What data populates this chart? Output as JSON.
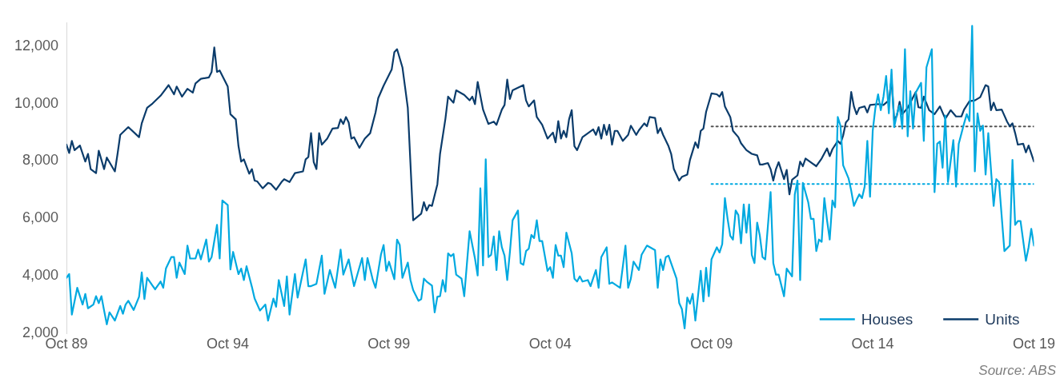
{
  "chart_data": {
    "type": "line",
    "xlim": [
      "1989-10",
      "2019-10"
    ],
    "ylim": [
      2000,
      12800
    ],
    "xticks": [
      {
        "value": "1989-10",
        "label": "Oct 89"
      },
      {
        "value": "1994-10",
        "label": "Oct 94"
      },
      {
        "value": "1999-10",
        "label": "Oct 99"
      },
      {
        "value": "2004-10",
        "label": "Oct 04"
      },
      {
        "value": "2009-10",
        "label": "Oct 09"
      },
      {
        "value": "2014-10",
        "label": "Oct 14"
      },
      {
        "value": "2019-10",
        "label": "Oct 19"
      }
    ],
    "yticks": [
      {
        "value": 2000,
        "label": "2,000"
      },
      {
        "value": 4000,
        "label": "4,000"
      },
      {
        "value": 6000,
        "label": "6,000"
      },
      {
        "value": 8000,
        "label": "8,000"
      },
      {
        "value": 10000,
        "label": "10,000"
      },
      {
        "value": 12000,
        "label": "12,000"
      }
    ],
    "grid": false,
    "legend": "bottom right",
    "marker": "none",
    "line_style": "solid",
    "annotations": [
      "Source: ABS"
    ],
    "series": [
      {
        "name": "Houses",
        "color": "#00a9e0",
        "x": [
          "1989-10",
          "1989-11",
          "1989-12",
          "1990-02",
          "1990-04",
          "1990-05",
          "1990-06",
          "1990-08",
          "1990-09",
          "1990-10",
          "1990-11",
          "1990-12",
          "1991-01",
          "1991-02",
          "1991-04",
          "1991-06",
          "1991-07",
          "1991-08",
          "1991-09",
          "1991-11",
          "1992-01",
          "1992-02",
          "1992-03",
          "1992-04",
          "1992-06",
          "1992-07",
          "1992-09",
          "1992-10",
          "1992-11",
          "1993-01",
          "1993-02",
          "1993-03",
          "1993-04",
          "1993-06",
          "1993-07",
          "1993-08",
          "1993-10",
          "1993-11",
          "1993-12",
          "1994-02",
          "1994-03",
          "1994-04",
          "1994-06",
          "1994-07",
          "1994-08",
          "1994-10",
          "1994-11",
          "1994-12",
          "1995-02",
          "1995-03",
          "1995-04",
          "1995-05",
          "1995-07",
          "1995-08",
          "1995-10",
          "1995-12",
          "1996-01",
          "1996-03",
          "1996-04",
          "1996-05",
          "1996-07",
          "1996-08",
          "1996-09",
          "1996-11",
          "1996-12",
          "1997-03",
          "1997-04",
          "1997-05",
          "1997-07",
          "1997-09",
          "1997-10",
          "1997-12",
          "1998-02",
          "1998-04",
          "1998-05",
          "1998-07",
          "1998-09",
          "1998-12",
          "1999-01",
          "1999-02",
          "1999-04",
          "1999-05",
          "1999-07",
          "1999-08",
          "1999-09",
          "1999-10",
          "1999-12",
          "2000-01",
          "2000-02",
          "2000-03",
          "2000-05",
          "2000-06",
          "2000-07",
          "2000-09",
          "2000-10",
          "2000-11",
          "2000-12",
          "2001-02",
          "2001-03",
          "2001-04",
          "2001-05",
          "2001-06",
          "2001-07",
          "2001-08",
          "2001-09",
          "2001-10",
          "2001-11",
          "2002-01",
          "2002-02",
          "2002-04",
          "2002-06",
          "2002-07",
          "2002-08",
          "2002-09",
          "2002-10",
          "2002-11",
          "2002-12",
          "2003-01",
          "2003-02",
          "2003-03",
          "2003-04",
          "2003-05",
          "2003-06",
          "2003-07",
          "2003-08",
          "2003-10",
          "2003-11",
          "2003-12",
          "2004-01",
          "2004-02",
          "2004-03",
          "2004-04",
          "2004-05",
          "2004-06",
          "2004-07",
          "2004-09",
          "2004-10",
          "2004-11",
          "2004-12",
          "2005-01",
          "2005-02",
          "2005-03",
          "2005-04",
          "2005-06",
          "2005-07",
          "2005-08",
          "2005-09",
          "2005-10",
          "2005-12",
          "2006-01",
          "2006-03",
          "2006-04",
          "2006-05",
          "2006-07",
          "2006-08",
          "2006-09",
          "2006-12",
          "2007-02",
          "2007-03",
          "2007-04",
          "2007-05",
          "2007-07",
          "2007-08",
          "2007-10",
          "2008-01",
          "2008-02",
          "2008-03",
          "2008-04",
          "2008-05",
          "2008-06",
          "2008-09",
          "2008-10",
          "2008-11",
          "2008-12",
          "2009-01",
          "2009-02",
          "2009-03",
          "2009-04",
          "2009-06",
          "2009-07",
          "2009-08",
          "2009-09",
          "2009-10",
          "2009-12",
          "2010-01",
          "2010-02",
          "2010-03",
          "2010-04",
          "2010-05",
          "2010-06",
          "2010-07",
          "2010-08",
          "2010-09",
          "2010-10",
          "2010-11",
          "2010-12",
          "2011-01",
          "2011-02",
          "2011-03",
          "2011-04",
          "2011-05",
          "2011-06",
          "2011-08",
          "2011-09",
          "2011-10",
          "2011-11",
          "2012-01",
          "2012-02",
          "2012-04",
          "2012-05",
          "2012-06",
          "2012-07",
          "2012-08",
          "2012-10",
          "2012-11",
          "2012-12",
          "2013-01",
          "2013-02",
          "2013-03",
          "2013-04",
          "2013-05",
          "2013-06",
          "2013-07",
          "2013-08",
          "2013-09",
          "2013-10",
          "2013-11",
          "2014-01",
          "2014-02",
          "2014-03",
          "2014-04",
          "2014-05",
          "2014-06",
          "2014-07",
          "2014-08",
          "2014-09",
          "2014-10",
          "2014-11",
          "2014-12",
          "2015-01",
          "2015-02",
          "2015-03",
          "2015-04",
          "2015-05",
          "2015-06",
          "2015-07",
          "2015-08",
          "2015-09",
          "2015-10",
          "2015-11",
          "2015-12",
          "2016-01",
          "2016-02",
          "2016-04",
          "2016-05",
          "2016-06",
          "2016-08",
          "2016-09",
          "2016-10",
          "2016-11",
          "2016-12",
          "2017-01",
          "2017-02",
          "2017-04",
          "2017-05",
          "2017-06",
          "2017-08",
          "2017-09",
          "2017-10",
          "2017-11",
          "2017-12",
          "2018-01",
          "2018-02",
          "2018-03",
          "2018-04",
          "2018-05",
          "2018-07",
          "2018-08",
          "2018-09",
          "2018-11",
          "2019-01",
          "2019-02",
          "2019-03",
          "2019-04",
          "2019-05",
          "2019-07",
          "2019-08",
          "2019-09",
          "2019-10"
        ],
        "values": [
          3940,
          4070,
          2660,
          3590,
          3010,
          3380,
          2880,
          3010,
          3300,
          3060,
          3300,
          2800,
          2320,
          2740,
          2450,
          2960,
          2690,
          3010,
          3140,
          2820,
          3280,
          4130,
          3200,
          3940,
          3670,
          3540,
          3810,
          3590,
          4260,
          4660,
          4660,
          3940,
          4470,
          4070,
          5060,
          4610,
          4610,
          4920,
          4580,
          5270,
          4500,
          4660,
          5780,
          4610,
          6630,
          6470,
          4230,
          4840,
          4070,
          4260,
          3860,
          4340,
          3620,
          3220,
          2800,
          3010,
          2450,
          3220,
          2930,
          3860,
          2960,
          3990,
          2660,
          4070,
          3250,
          4580,
          3650,
          3650,
          3730,
          4710,
          3380,
          4210,
          3590,
          4920,
          4050,
          4580,
          3650,
          4630,
          3860,
          4630,
          3860,
          3590,
          4740,
          5080,
          4180,
          4500,
          3890,
          5270,
          5080,
          3940,
          4470,
          3860,
          3510,
          3140,
          3200,
          3910,
          3810,
          3670,
          2740,
          3280,
          3300,
          3860,
          3460,
          4790,
          4690,
          4770,
          4050,
          3910,
          3300,
          5560,
          4610,
          4020,
          7050,
          4370,
          8060,
          4660,
          4740,
          5380,
          4210,
          5560,
          5000,
          4710,
          3860,
          4840,
          5940,
          6280,
          4450,
          4390,
          4870,
          4950,
          5430,
          5320,
          5940,
          5220,
          5220,
          4180,
          4310,
          3940,
          5080,
          4710,
          4710,
          4310,
          5510,
          4790,
          3910,
          3810,
          3990,
          3810,
          3860,
          3650,
          4210,
          3590,
          4660,
          5000,
          3730,
          3780,
          3590,
          5060,
          3590,
          3910,
          4500,
          4210,
          4740,
          5060,
          4900,
          3590,
          4580,
          4210,
          4660,
          4710,
          3910,
          3060,
          2850,
          2180,
          3250,
          3040,
          3380,
          2450,
          4180,
          3120,
          4290,
          3300,
          4580,
          5000,
          4820,
          5110,
          6710,
          5990,
          5400,
          5270,
          6280,
          6120,
          5140,
          6490,
          5510,
          6490,
          4740,
          4450,
          5860,
          5400,
          4660,
          4580,
          6920,
          4450,
          4050,
          4050,
          3300,
          4260,
          3990,
          6840,
          7320,
          3860,
          7240,
          6570,
          5990,
          5990,
          4870,
          5270,
          5190,
          6710,
          5940,
          5270,
          6630,
          6390,
          9530,
          9230,
          7850,
          7400,
          6970,
          6440,
          6650,
          6840,
          6710,
          7110,
          8700,
          6760,
          9050,
          9850,
          10320,
          9770,
          10240,
          10960,
          9660,
          11180,
          9180,
          9630,
          9930,
          9130,
          11890,
          8860,
          10430,
          9130,
          10380,
          10720,
          8700,
          11260,
          11890,
          6920,
          8600,
          8680,
          7770,
          9580,
          7270,
          8730,
          7110,
          8600,
          9310,
          9630,
          9390,
          12700,
          7640,
          9660,
          9050,
          9230,
          7530,
          8970,
          6440,
          7370,
          7270,
          4870,
          5060,
          8040,
          5780,
          5910,
          5910,
          4530,
          5000,
          5640,
          5060
        ]
      },
      {
        "name": "Units",
        "color": "#0b3c6b",
        "x": [
          "1989-10",
          "1989-11",
          "1989-12",
          "1990-01",
          "1990-03",
          "1990-05",
          "1990-06",
          "1990-07",
          "1990-09",
          "1990-10",
          "1990-12",
          "1991-01",
          "1991-04",
          "1991-05",
          "1991-06",
          "1991-09",
          "1992-01",
          "1992-02",
          "1992-04",
          "1992-06",
          "1992-09",
          "1992-12",
          "1993-02",
          "1993-03",
          "1993-05",
          "1993-07",
          "1993-09",
          "1993-10",
          "1993-12",
          "1994-03",
          "1994-04",
          "1994-05",
          "1994-06",
          "1994-07",
          "1994-10",
          "1994-11",
          "1995-01",
          "1995-02",
          "1995-03",
          "1995-04",
          "1995-06",
          "1995-07",
          "1995-08",
          "1995-09",
          "1995-11",
          "1996-01",
          "1996-02",
          "1996-04",
          "1996-06",
          "1996-07",
          "1996-09",
          "1996-11",
          "1997-02",
          "1997-03",
          "1997-04",
          "1997-05",
          "1997-06",
          "1997-07",
          "1997-08",
          "1997-09",
          "1997-11",
          "1998-01",
          "1998-03",
          "1998-04",
          "1998-05",
          "1998-06",
          "1998-07",
          "1998-08",
          "1998-09",
          "1998-11",
          "1999-01",
          "1999-03",
          "1999-05",
          "1999-06",
          "1999-08",
          "1999-11",
          "1999-12",
          "2000-01",
          "2000-03",
          "2000-04",
          "2000-05",
          "2000-07",
          "2000-10",
          "2000-11",
          "2000-12",
          "2001-01",
          "2001-02",
          "2001-04",
          "2001-05",
          "2001-07",
          "2001-08",
          "2001-10",
          "2001-11",
          "2002-02",
          "2002-04",
          "2002-05",
          "2002-06",
          "2002-07",
          "2002-09",
          "2002-11",
          "2003-01",
          "2003-02",
          "2003-04",
          "2003-05",
          "2003-06",
          "2003-07",
          "2003-08",
          "2003-12",
          "2004-01",
          "2004-02",
          "2004-04",
          "2004-05",
          "2004-07",
          "2004-09",
          "2004-11",
          "2004-12",
          "2005-01",
          "2005-02",
          "2005-03",
          "2005-04",
          "2005-05",
          "2005-06",
          "2005-07",
          "2005-08",
          "2005-10",
          "2006-02",
          "2006-03",
          "2006-04",
          "2006-05",
          "2006-06",
          "2006-07",
          "2006-08",
          "2006-09",
          "2006-10",
          "2006-11",
          "2007-01",
          "2007-03",
          "2007-04",
          "2007-06",
          "2007-07",
          "2007-09",
          "2007-10",
          "2007-11",
          "2008-01",
          "2008-02",
          "2008-03",
          "2008-04",
          "2008-06",
          "2008-07",
          "2008-08",
          "2008-10",
          "2008-11",
          "2009-01",
          "2009-02",
          "2009-04",
          "2009-05",
          "2009-06",
          "2009-07",
          "2009-08",
          "2009-10",
          "2009-12",
          "2010-01",
          "2010-02",
          "2010-03",
          "2010-05",
          "2010-06",
          "2010-08",
          "2010-09",
          "2010-11",
          "2011-01",
          "2011-03",
          "2011-04",
          "2011-05",
          "2011-07",
          "2011-08",
          "2011-09",
          "2011-10",
          "2011-11",
          "2012-01",
          "2012-02",
          "2012-03",
          "2012-04",
          "2012-06",
          "2012-07",
          "2012-08",
          "2012-09",
          "2013-01",
          "2013-03",
          "2013-05",
          "2013-06",
          "2013-07",
          "2013-09",
          "2013-10",
          "2013-11",
          "2013-12",
          "2014-01",
          "2014-02",
          "2014-03",
          "2014-04",
          "2014-05",
          "2014-07",
          "2014-08",
          "2014-09",
          "2014-12",
          "2015-02",
          "2015-04",
          "2015-05",
          "2015-06",
          "2015-07",
          "2015-08",
          "2015-09",
          "2015-11",
          "2016-02",
          "2016-03",
          "2016-04",
          "2016-05",
          "2016-07",
          "2016-09",
          "2016-11",
          "2017-01",
          "2017-03",
          "2017-05",
          "2017-07",
          "2017-08",
          "2017-10",
          "2017-12",
          "2018-02",
          "2018-04",
          "2018-05",
          "2018-06",
          "2018-07",
          "2018-08",
          "2018-10",
          "2018-11",
          "2018-12",
          "2019-01",
          "2019-02",
          "2019-03",
          "2019-04",
          "2019-06",
          "2019-07",
          "2019-08",
          "2019-10"
        ],
        "values": [
          8570,
          8280,
          8700,
          8380,
          8540,
          7980,
          8250,
          7720,
          7580,
          8360,
          7720,
          8120,
          7640,
          8250,
          8910,
          9180,
          8830,
          9310,
          9850,
          10000,
          10270,
          10640,
          10320,
          10590,
          10240,
          10510,
          10380,
          10700,
          10860,
          10910,
          11100,
          11950,
          11100,
          11150,
          10590,
          9630,
          9450,
          8520,
          7980,
          8060,
          7560,
          7720,
          7320,
          7290,
          7050,
          7240,
          7210,
          7000,
          7270,
          7370,
          7270,
          7580,
          7640,
          8060,
          8140,
          8970,
          7960,
          7720,
          8970,
          8570,
          8780,
          9130,
          9150,
          9450,
          9290,
          9530,
          9340,
          8780,
          8830,
          8460,
          8780,
          8970,
          9690,
          10190,
          10620,
          11180,
          11790,
          11890,
          11260,
          10560,
          9850,
          5940,
          6170,
          6570,
          6280,
          6470,
          6440,
          7190,
          8250,
          9470,
          10240,
          10030,
          10460,
          10300,
          10110,
          10240,
          9980,
          10750,
          9790,
          9290,
          9370,
          9260,
          9790,
          9950,
          10830,
          10160,
          10460,
          10640,
          10110,
          9900,
          10110,
          9530,
          9260,
          8780,
          8990,
          8650,
          9390,
          8780,
          9050,
          8830,
          9450,
          9770,
          8520,
          8380,
          8830,
          9100,
          8910,
          9180,
          8780,
          9260,
          8910,
          9260,
          8570,
          9050,
          9050,
          8700,
          8910,
          9230,
          8910,
          9070,
          9310,
          9210,
          9530,
          9500,
          8970,
          9150,
          8910,
          8520,
          8250,
          7720,
          7320,
          7450,
          7530,
          8040,
          8650,
          8460,
          9050,
          9130,
          9710,
          10350,
          10320,
          10240,
          10400,
          9900,
          9530,
          9050,
          8830,
          8620,
          8380,
          8250,
          8200,
          7880,
          7880,
          7930,
          7720,
          7320,
          7720,
          7960,
          7370,
          7690,
          6840,
          7350,
          7500,
          7980,
          7820,
          8090,
          7820,
          8090,
          8440,
          8170,
          8410,
          8700,
          8600,
          8890,
          9340,
          9450,
          10400,
          9900,
          9630,
          9850,
          9900,
          9690,
          9950,
          9980,
          9950,
          10110,
          10830,
          9420,
          9580,
          10060,
          9630,
          9850,
          10400,
          9870,
          9850,
          10240,
          9770,
          9630,
          9900,
          9470,
          9770,
          9550,
          9550,
          9790,
          10080,
          10110,
          10220,
          10640,
          10590,
          9770,
          10030,
          9770,
          9790,
          9580,
          9370,
          9210,
          9310,
          8970,
          8570,
          8600,
          8300,
          8540,
          7980
        ]
      },
      {
        "color": "#555555",
        "line_style": "dotted",
        "x": [
          "2009-10",
          "2019-10"
        ],
        "values": [
          9200,
          9200
        ]
      },
      {
        "color": "#00a9e0",
        "line_style": "dotted",
        "x": [
          "2009-10",
          "2019-10"
        ],
        "values": [
          7200,
          7200
        ]
      }
    ]
  }
}
